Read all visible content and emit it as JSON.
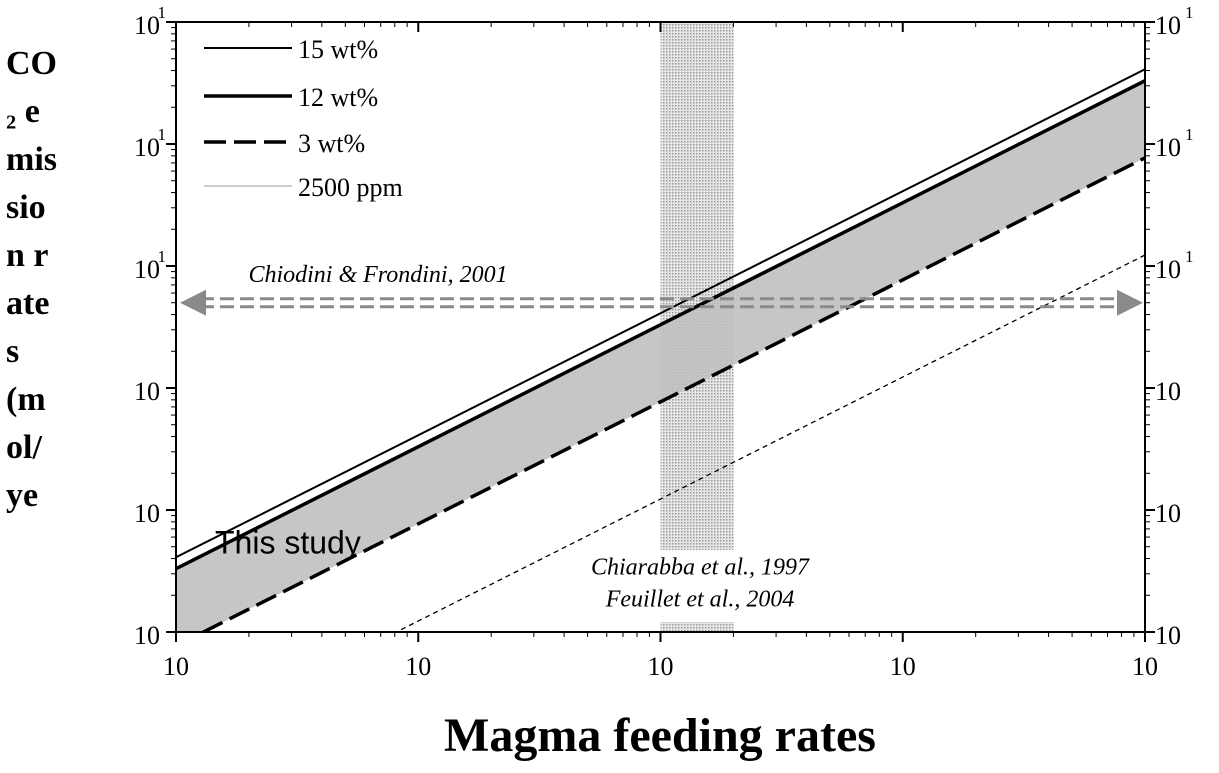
{
  "chart_data": {
    "type": "line",
    "x_label": "Magma feeding rates",
    "y_label": "CO₂ emission rates (mol/ye",
    "log_x": true,
    "log_y": true,
    "xlim": [
      0.0001,
      1
    ],
    "xticks": [
      {
        "value": 0.0001,
        "label": "10"
      },
      {
        "value": 0.001,
        "label": "10"
      },
      {
        "value": 0.01,
        "label": "10"
      },
      {
        "value": 0.1,
        "label": "10"
      },
      {
        "value": 1,
        "label": "10"
      }
    ],
    "ylim": [
      100000000,
      10000000000000
    ],
    "yticks": [
      {
        "value": 100000000,
        "label": "10"
      },
      {
        "value": 1000000000,
        "label": "10"
      },
      {
        "value": 10000000000,
        "label": "10"
      },
      {
        "value": 100000000000,
        "label": "10",
        "sup": "1"
      },
      {
        "value": 1000000000000,
        "label": "10",
        "sup": "1"
      },
      {
        "value": 10000000000000,
        "label": "10",
        "sup": "1"
      }
    ],
    "x": [
      0.0001,
      1
    ],
    "series": [
      {
        "name": "15 wt%",
        "color": "#000000",
        "line_style": "solid",
        "values": [
          410000000,
          4100000000000
        ]
      },
      {
        "name": "12 wt%",
        "color": "#000000",
        "line_style": "bold",
        "values": [
          330000000,
          3300000000000
        ]
      },
      {
        "name": "3 wt%",
        "color": "#000000",
        "line_style": "dashed",
        "values": [
          77000000,
          770000000000
        ]
      },
      {
        "name": "2500 ppm",
        "color": "#000000",
        "line_style": "thin-dashed",
        "values": [
          12300000,
          123000000000
        ]
      }
    ],
    "shaded_area": {
      "name": "This study",
      "color": "#c0c0c0"
    },
    "vertical_band": {
      "x": [
        0.01,
        0.02
      ],
      "color": "#bdbdbd",
      "labels": [
        "Chiarabba et al., 1997",
        "Feuillet et al., 2004"
      ]
    },
    "horizontal_arrow": {
      "value": 50000000000,
      "color": "#8a8a8a",
      "label": "Chiodini & Frondini, 2001"
    }
  }
}
